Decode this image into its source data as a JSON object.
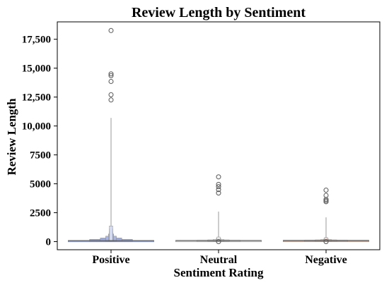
{
  "chart_data": {
    "type": "boxen",
    "title": "Review Length by Sentiment",
    "xlabel": "Sentiment Rating",
    "ylabel": "Review Length",
    "ylim": [
      -700,
      19000
    ],
    "yticks": [
      0,
      2500,
      5000,
      7500,
      10000,
      12500,
      15000,
      17500
    ],
    "ytick_labels": [
      "0",
      "2500",
      "5000",
      "7500",
      "10,000",
      "12,500",
      "15,000",
      "17,500"
    ],
    "grid": false,
    "categories": [
      "Positive",
      "Neutral",
      "Negative"
    ],
    "colors": [
      "#8a9bd4",
      "#c9c9c9",
      "#d19a86"
    ],
    "series": [
      {
        "category": "Positive",
        "median": 90,
        "whisker_high": 10700,
        "outliers": [
          18250,
          14500,
          14350,
          13850,
          12700,
          12250
        ]
      },
      {
        "category": "Neutral",
        "median": 100,
        "whisker_high": 2600,
        "outliers": [
          5600,
          4950,
          4750,
          4500,
          4200,
          0
        ]
      },
      {
        "category": "Negative",
        "median": 110,
        "whisker_high": 2100,
        "outliers": [
          4450,
          4000,
          3650,
          3550,
          3450,
          0
        ]
      }
    ]
  }
}
